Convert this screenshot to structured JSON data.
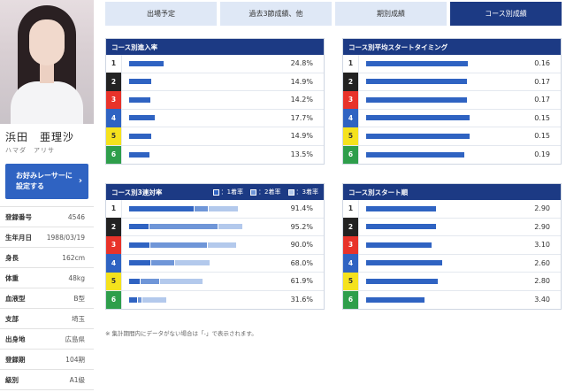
{
  "racer": {
    "name": "浜田　亜理沙",
    "kana": "ハマダ　アリサ",
    "fav_button_line1": "お好みレーサーに",
    "fav_button_line2": "設定する",
    "fav_button_arrow": "›",
    "info": [
      {
        "label": "登録番号",
        "value": "4546"
      },
      {
        "label": "生年月日",
        "value": "1988/03/19"
      },
      {
        "label": "身長",
        "value": "162cm"
      },
      {
        "label": "体重",
        "value": "48kg"
      },
      {
        "label": "血液型",
        "value": "B型"
      },
      {
        "label": "支部",
        "value": "埼玉"
      },
      {
        "label": "出身地",
        "value": "広島県"
      },
      {
        "label": "登録期",
        "value": "104期"
      },
      {
        "label": "級別",
        "value": "A1級"
      }
    ]
  },
  "tabs": [
    {
      "label": "出場予定",
      "active": false
    },
    {
      "label": "過去3節成績、他",
      "active": false
    },
    {
      "label": "期別成績",
      "active": false
    },
    {
      "label": "コース別成績",
      "active": true
    }
  ],
  "lane_colors": {
    "1": {
      "bg": "#ffffff",
      "fg": "#333333"
    },
    "2": {
      "bg": "#222222",
      "fg": "#ffffff"
    },
    "3": {
      "bg": "#e8332a",
      "fg": "#ffffff"
    },
    "4": {
      "bg": "#2f63c2",
      "fg": "#ffffff"
    },
    "5": {
      "bg": "#f5e21d",
      "fg": "#333333"
    },
    "6": {
      "bg": "#2e9e4b",
      "fg": "#ffffff"
    }
  },
  "colors": {
    "bar_primary": "#2f63c2",
    "bar_second": "#6f96d8",
    "bar_third": "#b3c9ec"
  },
  "chart_data": [
    {
      "type": "bar",
      "title": "コース別進入率",
      "categories": [
        "1",
        "2",
        "3",
        "4",
        "5",
        "6"
      ],
      "values": [
        24.8,
        14.9,
        14.2,
        17.7,
        14.9,
        13.5
      ],
      "labels": [
        "24.8%",
        "14.9%",
        "14.2%",
        "17.7%",
        "14.9%",
        "13.5%"
      ],
      "xlim": [
        0,
        100
      ]
    },
    {
      "type": "bar",
      "title": "コース別平均スタートタイミング",
      "categories": [
        "1",
        "2",
        "3",
        "4",
        "5",
        "6"
      ],
      "values": [
        0.16,
        0.17,
        0.17,
        0.15,
        0.15,
        0.19
      ],
      "labels": [
        "0.16",
        "0.17",
        "0.17",
        "0.15",
        "0.15",
        "0.19"
      ],
      "bar_fraction": [
        0.9,
        0.89,
        0.89,
        0.91,
        0.91,
        0.87
      ]
    },
    {
      "type": "bar",
      "title": "コース別3連対率",
      "legend": [
        "：1着率",
        "：2着率",
        "：3着率"
      ],
      "categories": [
        "1",
        "2",
        "3",
        "4",
        "5",
        "6"
      ],
      "series": [
        {
          "name": "1着率",
          "values": [
            54.5,
            16.7,
            17.9,
            18.0,
            9.5,
            7.0
          ]
        },
        {
          "name": "2着率",
          "values": [
            12.0,
            57.8,
            47.6,
            20.0,
            16.3,
            4.0
          ]
        },
        {
          "name": "3着率",
          "values": [
            24.9,
            20.7,
            24.5,
            30.0,
            36.1,
            20.6
          ]
        }
      ],
      "totals": [
        "91.4%",
        "95.2%",
        "90.0%",
        "68.0%",
        "61.9%",
        "31.6%"
      ],
      "xlim": [
        0,
        100
      ]
    },
    {
      "type": "bar",
      "title": "コース別スタート順",
      "categories": [
        "1",
        "2",
        "3",
        "4",
        "5",
        "6"
      ],
      "values": [
        2.9,
        2.9,
        3.1,
        2.6,
        2.8,
        3.4
      ],
      "labels": [
        "2.90",
        "2.90",
        "3.10",
        "2.60",
        "2.80",
        "3.40"
      ],
      "bar_fraction": [
        0.72,
        0.72,
        0.67,
        0.78,
        0.74,
        0.6
      ]
    }
  ],
  "note": "※ 集計期間内にデータがない場合は「-」で表示されます。"
}
